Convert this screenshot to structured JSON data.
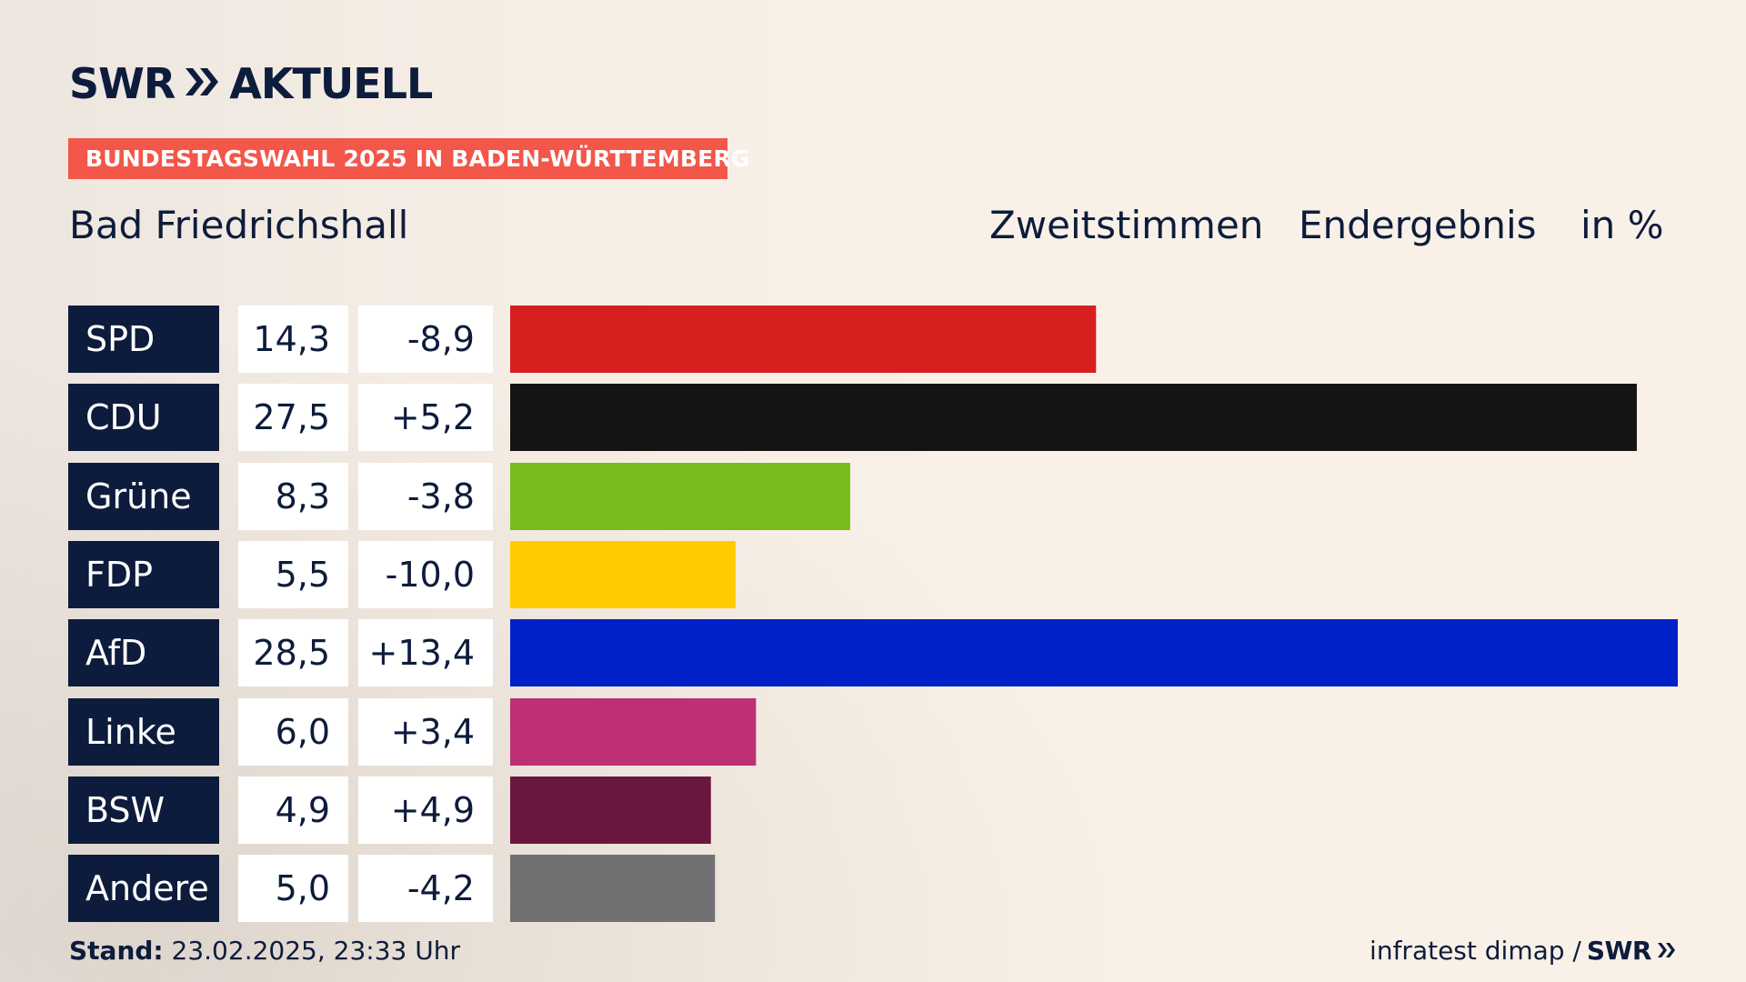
{
  "brand": {
    "logo_left": "SWR",
    "logo_right": "AKTUELL",
    "arrows_icon": "double-chevron-right-icon"
  },
  "banner": {
    "text": "BUNDESTAGSWAHL 2025 IN BADEN-WÜRTTEMBERG",
    "color": "#f2574a"
  },
  "header": {
    "location": "Bad Friedrichshall",
    "vote_type": "Zweitstimmen",
    "result_type": "Endergebnis",
    "unit": "in %"
  },
  "chart_data": {
    "type": "bar",
    "orientation": "horizontal",
    "categories": [
      "SPD",
      "CDU",
      "Grüne",
      "FDP",
      "AfD",
      "Linke",
      "BSW",
      "Andere"
    ],
    "values": [
      14.3,
      27.5,
      8.3,
      5.5,
      28.5,
      6.0,
      4.9,
      5.0
    ],
    "value_labels": [
      "14,3",
      "27,5",
      "8,3",
      "5,5",
      "28,5",
      "6,0",
      "4,9",
      "5,0"
    ],
    "differences": [
      -8.9,
      5.2,
      -3.8,
      -10.0,
      13.4,
      3.4,
      4.9,
      -4.2
    ],
    "difference_labels": [
      "-8,9",
      "+5,2",
      "-3,8",
      "-10,0",
      "+13,4",
      "+3,4",
      "+4,9",
      "-4,2"
    ],
    "colors": [
      "#d71f1f",
      "#141414",
      "#78bc1b",
      "#ffcc00",
      "#0021c8",
      "#bd3075",
      "#6a173f",
      "#717173"
    ],
    "xlim": [
      0,
      28.5
    ],
    "grid": false,
    "legend": "none"
  },
  "footer": {
    "stand_label": "Stand:",
    "stand_value": "23.02.2025, 23:33 Uhr",
    "source": "infratest dimap /",
    "source_logo": "SWR"
  }
}
